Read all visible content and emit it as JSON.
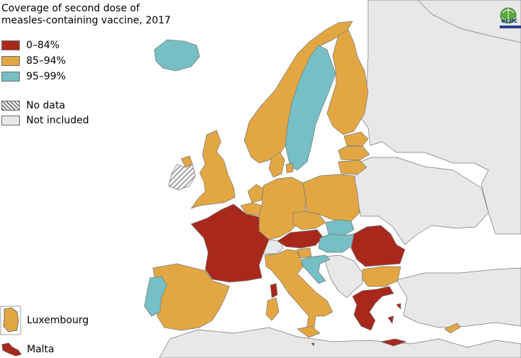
{
  "title": "Coverage of second dose of measles-containing vaccine, 2017",
  "legend": [
    {
      "label": "0–84%",
      "color": "#a8291c"
    },
    {
      "label": "85–94%",
      "color": "#e2a743"
    },
    {
      "label": "95–99%",
      "color": "#76bfc4"
    },
    {
      "label": "No data",
      "color": "hatched"
    },
    {
      "label": "Not included",
      "color": "#e8e8e8"
    }
  ],
  "insets": {
    "luxembourg": {
      "label": "Luxembourg",
      "category": "85–94%"
    },
    "malta": {
      "label": "Malta",
      "category": "0–84%"
    }
  },
  "logo": {
    "text": "ecdc"
  },
  "countries": [
    {
      "name": "Iceland",
      "category": "95–99%"
    },
    {
      "name": "Norway",
      "category": "85–94%"
    },
    {
      "name": "Sweden",
      "category": "95–99%"
    },
    {
      "name": "Finland",
      "category": "85–94%"
    },
    {
      "name": "Estonia",
      "category": "85–94%"
    },
    {
      "name": "Latvia",
      "category": "85–94%"
    },
    {
      "name": "Lithuania",
      "category": "85–94%"
    },
    {
      "name": "Denmark",
      "category": "85–94%"
    },
    {
      "name": "United Kingdom",
      "category": "85–94%"
    },
    {
      "name": "Ireland",
      "category": "No data"
    },
    {
      "name": "Netherlands",
      "category": "85–94%"
    },
    {
      "name": "Belgium",
      "category": "85–94%"
    },
    {
      "name": "Germany",
      "category": "85–94%"
    },
    {
      "name": "Poland",
      "category": "85–94%"
    },
    {
      "name": "Czechia",
      "category": "85–94%"
    },
    {
      "name": "Slovakia",
      "category": "95–99%"
    },
    {
      "name": "Hungary",
      "category": "95–99%"
    },
    {
      "name": "Austria",
      "category": "0–84%"
    },
    {
      "name": "Slovenia",
      "category": "85–94%"
    },
    {
      "name": "Croatia",
      "category": "95–99%"
    },
    {
      "name": "France",
      "category": "0–84%"
    },
    {
      "name": "Spain",
      "category": "85–94%"
    },
    {
      "name": "Portugal",
      "category": "95–99%"
    },
    {
      "name": "Italy",
      "category": "85–94%"
    },
    {
      "name": "Romania",
      "category": "0–84%"
    },
    {
      "name": "Bulgaria",
      "category": "85–94%"
    },
    {
      "name": "Greece",
      "category": "0–84%"
    },
    {
      "name": "Cyprus",
      "category": "85–94%"
    },
    {
      "name": "Switzerland",
      "category": "Not included"
    }
  ]
}
